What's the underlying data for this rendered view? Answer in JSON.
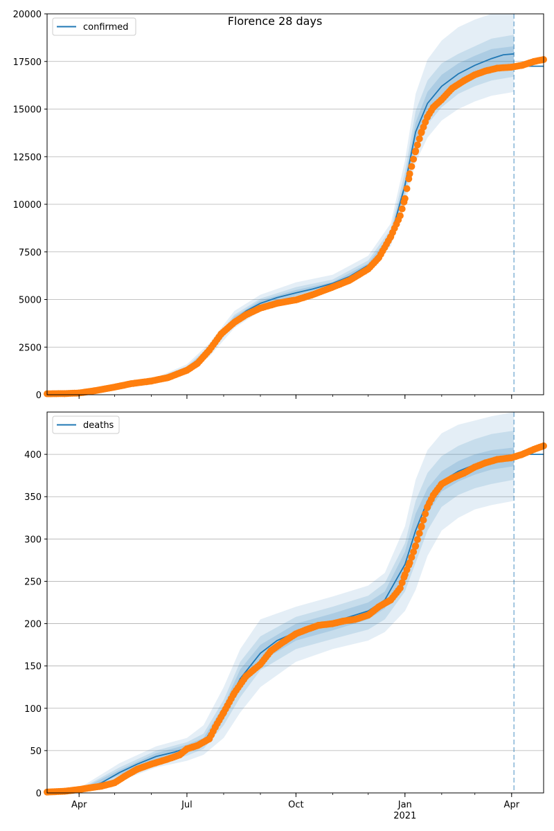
{
  "title": "Florence 28 days",
  "x_axis": {
    "ticks": [
      {
        "date": "2020-04-01",
        "label": "Apr",
        "sublabel": ""
      },
      {
        "date": "2020-07-01",
        "label": "Jul",
        "sublabel": ""
      },
      {
        "date": "2020-10-01",
        "label": "Oct",
        "sublabel": ""
      },
      {
        "date": "2021-01-01",
        "label": "Jan",
        "sublabel": "2021"
      },
      {
        "date": "2021-04-01",
        "label": "Apr",
        "sublabel": ""
      }
    ],
    "range": [
      "2020-03-05",
      "2021-04-28"
    ],
    "minor_ticks": "monthly",
    "forecast_start": "2021-04-03"
  },
  "colors": {
    "model": "#1f77b4",
    "observed": "#ff7f0e",
    "band": "#1f77b4",
    "grid": "#b0b0b0",
    "forecast_line": "#1f77b4"
  },
  "chart_data": [
    {
      "type": "line",
      "panel": "top",
      "legend": [
        "confirmed"
      ],
      "legend_position": "top-left",
      "grid": "horizontal",
      "ylim": [
        0,
        20000
      ],
      "yticks": [
        {
          "value": 0,
          "label": "0"
        },
        {
          "value": 2500,
          "label": "2500"
        },
        {
          "value": 5000,
          "label": "5000"
        },
        {
          "value": 7500,
          "label": "7500"
        },
        {
          "value": 10000,
          "label": "10000"
        },
        {
          "value": 12500,
          "label": "12500"
        },
        {
          "value": 15000,
          "label": "15000"
        },
        {
          "value": 17500,
          "label": "17500"
        },
        {
          "value": 20000,
          "label": "20000"
        }
      ],
      "model": {
        "x": [
          "2020-03-05",
          "2020-03-20",
          "2020-04-05",
          "2020-04-20",
          "2020-05-05",
          "2020-05-20",
          "2020-06-05",
          "2020-06-20",
          "2020-07-01",
          "2020-07-10",
          "2020-07-20",
          "2020-07-30",
          "2020-08-10",
          "2020-08-20",
          "2020-09-01",
          "2020-09-15",
          "2020-10-01",
          "2020-10-15",
          "2020-11-01",
          "2020-11-15",
          "2020-12-01",
          "2020-12-10",
          "2020-12-20",
          "2021-01-01",
          "2021-01-10",
          "2021-01-20",
          "2021-02-01",
          "2021-02-15",
          "2021-03-01",
          "2021-03-15",
          "2021-03-25",
          "2021-04-03"
        ],
        "y": [
          0,
          20,
          80,
          250,
          450,
          620,
          780,
          1000,
          1400,
          1700,
          2350,
          3250,
          3950,
          4400,
          4800,
          5100,
          5350,
          5550,
          5850,
          6200,
          6800,
          7300,
          8300,
          11000,
          13800,
          15300,
          16200,
          16850,
          17300,
          17650,
          17850,
          17900
        ],
        "plateau": {
          "start": "2021-04-03",
          "end": "2021-04-28",
          "value": 17250
        }
      },
      "bands": [
        {
          "name": "outer",
          "x": [
            "2020-03-05",
            "2020-04-20",
            "2020-06-05",
            "2020-07-01",
            "2020-07-20",
            "2020-08-10",
            "2020-09-01",
            "2020-10-01",
            "2020-11-01",
            "2020-12-01",
            "2020-12-20",
            "2021-01-01",
            "2021-01-10",
            "2021-01-20",
            "2021-02-01",
            "2021-02-15",
            "2021-03-01",
            "2021-03-15",
            "2021-04-03"
          ],
          "lower": [
            0,
            200,
            650,
            1200,
            2000,
            3500,
            4400,
            4900,
            5550,
            6500,
            7800,
            10000,
            12200,
            13500,
            14400,
            15000,
            15400,
            15700,
            15900
          ],
          "upper": [
            0,
            300,
            900,
            1600,
            2700,
            4400,
            5250,
            5900,
            6300,
            7300,
            9000,
            12300,
            15800,
            17600,
            18600,
            19300,
            19700,
            20000,
            20000
          ]
        },
        {
          "name": "middle",
          "x": [
            "2020-03-05",
            "2020-04-20",
            "2020-06-05",
            "2020-07-01",
            "2020-07-20",
            "2020-08-10",
            "2020-09-01",
            "2020-10-01",
            "2020-11-01",
            "2020-12-01",
            "2020-12-20",
            "2021-01-01",
            "2021-01-10",
            "2021-01-20",
            "2021-02-01",
            "2021-02-15",
            "2021-03-01",
            "2021-03-15",
            "2021-04-03"
          ],
          "lower": [
            0,
            220,
            700,
            1300,
            2150,
            3700,
            4550,
            5100,
            5700,
            6650,
            8000,
            10400,
            12800,
            14200,
            15100,
            15800,
            16200,
            16500,
            16700
          ],
          "upper": [
            0,
            280,
            860,
            1500,
            2550,
            4200,
            5050,
            5650,
            6050,
            7050,
            8700,
            11700,
            14900,
            16500,
            17400,
            17900,
            18300,
            18700,
            18900
          ]
        },
        {
          "name": "inner",
          "x": [
            "2020-03-05",
            "2020-04-20",
            "2020-06-05",
            "2020-07-01",
            "2020-07-20",
            "2020-08-10",
            "2020-09-01",
            "2020-10-01",
            "2020-11-01",
            "2020-12-01",
            "2020-12-20",
            "2021-01-01",
            "2021-01-10",
            "2021-01-20",
            "2021-02-01",
            "2021-02-15",
            "2021-03-01",
            "2021-03-15",
            "2021-04-03"
          ],
          "lower": [
            0,
            235,
            740,
            1350,
            2250,
            3800,
            4650,
            5200,
            5780,
            6720,
            8150,
            10700,
            13300,
            14700,
            15600,
            16300,
            16700,
            17000,
            17200
          ],
          "upper": [
            0,
            265,
            820,
            1450,
            2450,
            4100,
            4950,
            5500,
            5920,
            6900,
            8450,
            11300,
            14300,
            15900,
            16800,
            17400,
            17800,
            18150,
            18300
          ]
        }
      ],
      "observed": {
        "x": [
          "2020-03-05",
          "2020-03-20",
          "2020-04-01",
          "2020-04-15",
          "2020-05-01",
          "2020-05-15",
          "2020-06-01",
          "2020-06-15",
          "2020-07-01",
          "2020-07-10",
          "2020-07-20",
          "2020-07-30",
          "2020-08-10",
          "2020-08-20",
          "2020-09-01",
          "2020-09-15",
          "2020-10-01",
          "2020-10-15",
          "2020-11-01",
          "2020-11-15",
          "2020-12-01",
          "2020-12-10",
          "2020-12-20",
          "2020-12-28",
          "2021-01-01",
          "2021-01-05",
          "2021-01-10",
          "2021-01-15",
          "2021-01-20",
          "2021-01-25",
          "2021-02-01",
          "2021-02-10",
          "2021-02-20",
          "2021-03-01",
          "2021-03-10",
          "2021-03-20",
          "2021-04-01",
          "2021-04-10",
          "2021-04-20",
          "2021-04-28"
        ],
        "y": [
          50,
          60,
          90,
          220,
          400,
          580,
          720,
          900,
          1280,
          1650,
          2350,
          3200,
          3800,
          4200,
          4550,
          4800,
          4980,
          5250,
          5650,
          6000,
          6600,
          7200,
          8300,
          9400,
          10300,
          11600,
          12800,
          13800,
          14600,
          15100,
          15500,
          16100,
          16500,
          16800,
          17000,
          17150,
          17200,
          17300,
          17500,
          17600
        ]
      }
    },
    {
      "type": "line",
      "panel": "bottom",
      "legend": [
        "deaths"
      ],
      "legend_position": "top-left",
      "grid": "horizontal",
      "ylim": [
        0,
        450
      ],
      "yticks": [
        {
          "value": 0,
          "label": "0"
        },
        {
          "value": 50,
          "label": "50"
        },
        {
          "value": 100,
          "label": "100"
        },
        {
          "value": 150,
          "label": "150"
        },
        {
          "value": 200,
          "label": "200"
        },
        {
          "value": 250,
          "label": "250"
        },
        {
          "value": 300,
          "label": "300"
        },
        {
          "value": 350,
          "label": "350"
        },
        {
          "value": 400,
          "label": "400"
        }
      ],
      "model": {
        "x": [
          "2020-03-05",
          "2020-03-20",
          "2020-04-05",
          "2020-04-20",
          "2020-05-05",
          "2020-05-20",
          "2020-06-05",
          "2020-06-20",
          "2020-07-01",
          "2020-07-15",
          "2020-08-01",
          "2020-08-15",
          "2020-09-01",
          "2020-09-15",
          "2020-10-01",
          "2020-10-15",
          "2020-11-01",
          "2020-11-15",
          "2020-12-01",
          "2020-12-15",
          "2021-01-01",
          "2021-01-10",
          "2021-01-20",
          "2021-02-01",
          "2021-02-15",
          "2021-03-01",
          "2021-03-15",
          "2021-04-03"
        ],
        "y": [
          0,
          1,
          5,
          12,
          24,
          34,
          43,
          48,
          53,
          60,
          95,
          135,
          165,
          180,
          190,
          196,
          202,
          208,
          215,
          228,
          270,
          310,
          345,
          368,
          380,
          388,
          393,
          396
        ],
        "plateau": {
          "start": "2021-04-03",
          "end": "2021-04-28",
          "value": 400
        }
      },
      "bands": [
        {
          "name": "outer",
          "x": [
            "2020-03-05",
            "2020-04-05",
            "2020-05-05",
            "2020-06-05",
            "2020-07-01",
            "2020-07-15",
            "2020-08-01",
            "2020-08-15",
            "2020-09-01",
            "2020-10-01",
            "2020-11-01",
            "2020-12-01",
            "2020-12-15",
            "2021-01-01",
            "2021-01-10",
            "2021-01-20",
            "2021-02-01",
            "2021-02-15",
            "2021-03-01",
            "2021-03-15",
            "2021-04-03"
          ],
          "lower": [
            0,
            3,
            14,
            30,
            38,
            45,
            65,
            95,
            125,
            155,
            170,
            180,
            190,
            215,
            240,
            280,
            310,
            325,
            335,
            340,
            345
          ],
          "upper": [
            0,
            9,
            35,
            55,
            65,
            80,
            125,
            170,
            205,
            220,
            232,
            245,
            260,
            315,
            370,
            405,
            425,
            435,
            440,
            445,
            450
          ]
        },
        {
          "name": "middle",
          "x": [
            "2020-03-05",
            "2020-04-05",
            "2020-05-05",
            "2020-06-05",
            "2020-07-01",
            "2020-07-15",
            "2020-08-01",
            "2020-08-15",
            "2020-09-01",
            "2020-10-01",
            "2020-11-01",
            "2020-12-01",
            "2020-12-15",
            "2021-01-01",
            "2021-01-10",
            "2021-01-20",
            "2021-02-01",
            "2021-02-15",
            "2021-03-01",
            "2021-03-15",
            "2021-04-03"
          ],
          "lower": [
            0,
            4,
            18,
            35,
            44,
            52,
            80,
            113,
            145,
            170,
            182,
            193,
            205,
            238,
            272,
            310,
            338,
            352,
            360,
            365,
            370
          ],
          "upper": [
            0,
            7,
            30,
            50,
            60,
            70,
            110,
            155,
            185,
            208,
            220,
            233,
            248,
            295,
            345,
            378,
            398,
            410,
            418,
            424,
            428
          ]
        },
        {
          "name": "inner",
          "x": [
            "2020-03-05",
            "2020-04-05",
            "2020-05-05",
            "2020-06-05",
            "2020-07-01",
            "2020-07-15",
            "2020-08-01",
            "2020-08-15",
            "2020-09-01",
            "2020-10-01",
            "2020-11-01",
            "2020-12-01",
            "2020-12-15",
            "2021-01-01",
            "2021-01-10",
            "2021-01-20",
            "2021-02-01",
            "2021-02-15",
            "2021-03-01",
            "2021-03-15",
            "2021-04-03"
          ],
          "lower": [
            0,
            4,
            21,
            39,
            49,
            56,
            87,
            124,
            155,
            180,
            192,
            205,
            218,
            256,
            292,
            330,
            356,
            368,
            376,
            382,
            386
          ],
          "upper": [
            0,
            6,
            27,
            47,
            57,
            65,
            103,
            146,
            175,
            200,
            212,
            225,
            238,
            285,
            330,
            360,
            380,
            392,
            400,
            405,
            408
          ]
        }
      ],
      "observed": {
        "x": [
          "2020-03-05",
          "2020-03-20",
          "2020-04-01",
          "2020-04-10",
          "2020-04-20",
          "2020-05-01",
          "2020-05-10",
          "2020-05-20",
          "2020-06-01",
          "2020-06-15",
          "2020-06-25",
          "2020-07-01",
          "2020-07-10",
          "2020-07-20",
          "2020-07-25",
          "2020-08-01",
          "2020-08-10",
          "2020-08-20",
          "2020-09-01",
          "2020-09-10",
          "2020-09-20",
          "2020-10-01",
          "2020-10-10",
          "2020-10-20",
          "2020-11-01",
          "2020-11-10",
          "2020-11-20",
          "2020-12-01",
          "2020-12-10",
          "2020-12-20",
          "2020-12-28",
          "2021-01-01",
          "2021-01-05",
          "2021-01-10",
          "2021-01-15",
          "2021-01-20",
          "2021-01-25",
          "2021-02-01",
          "2021-02-10",
          "2021-02-20",
          "2021-03-01",
          "2021-03-10",
          "2021-03-20",
          "2021-04-01",
          "2021-04-10",
          "2021-04-20",
          "2021-04-28"
        ],
        "y": [
          1,
          2,
          4,
          6,
          8,
          12,
          20,
          28,
          34,
          40,
          45,
          52,
          56,
          64,
          78,
          95,
          118,
          138,
          152,
          168,
          178,
          188,
          193,
          198,
          200,
          203,
          205,
          210,
          220,
          228,
          242,
          258,
          272,
          292,
          315,
          338,
          352,
          365,
          372,
          378,
          385,
          390,
          394,
          396,
          400,
          406,
          410
        ]
      }
    }
  ]
}
